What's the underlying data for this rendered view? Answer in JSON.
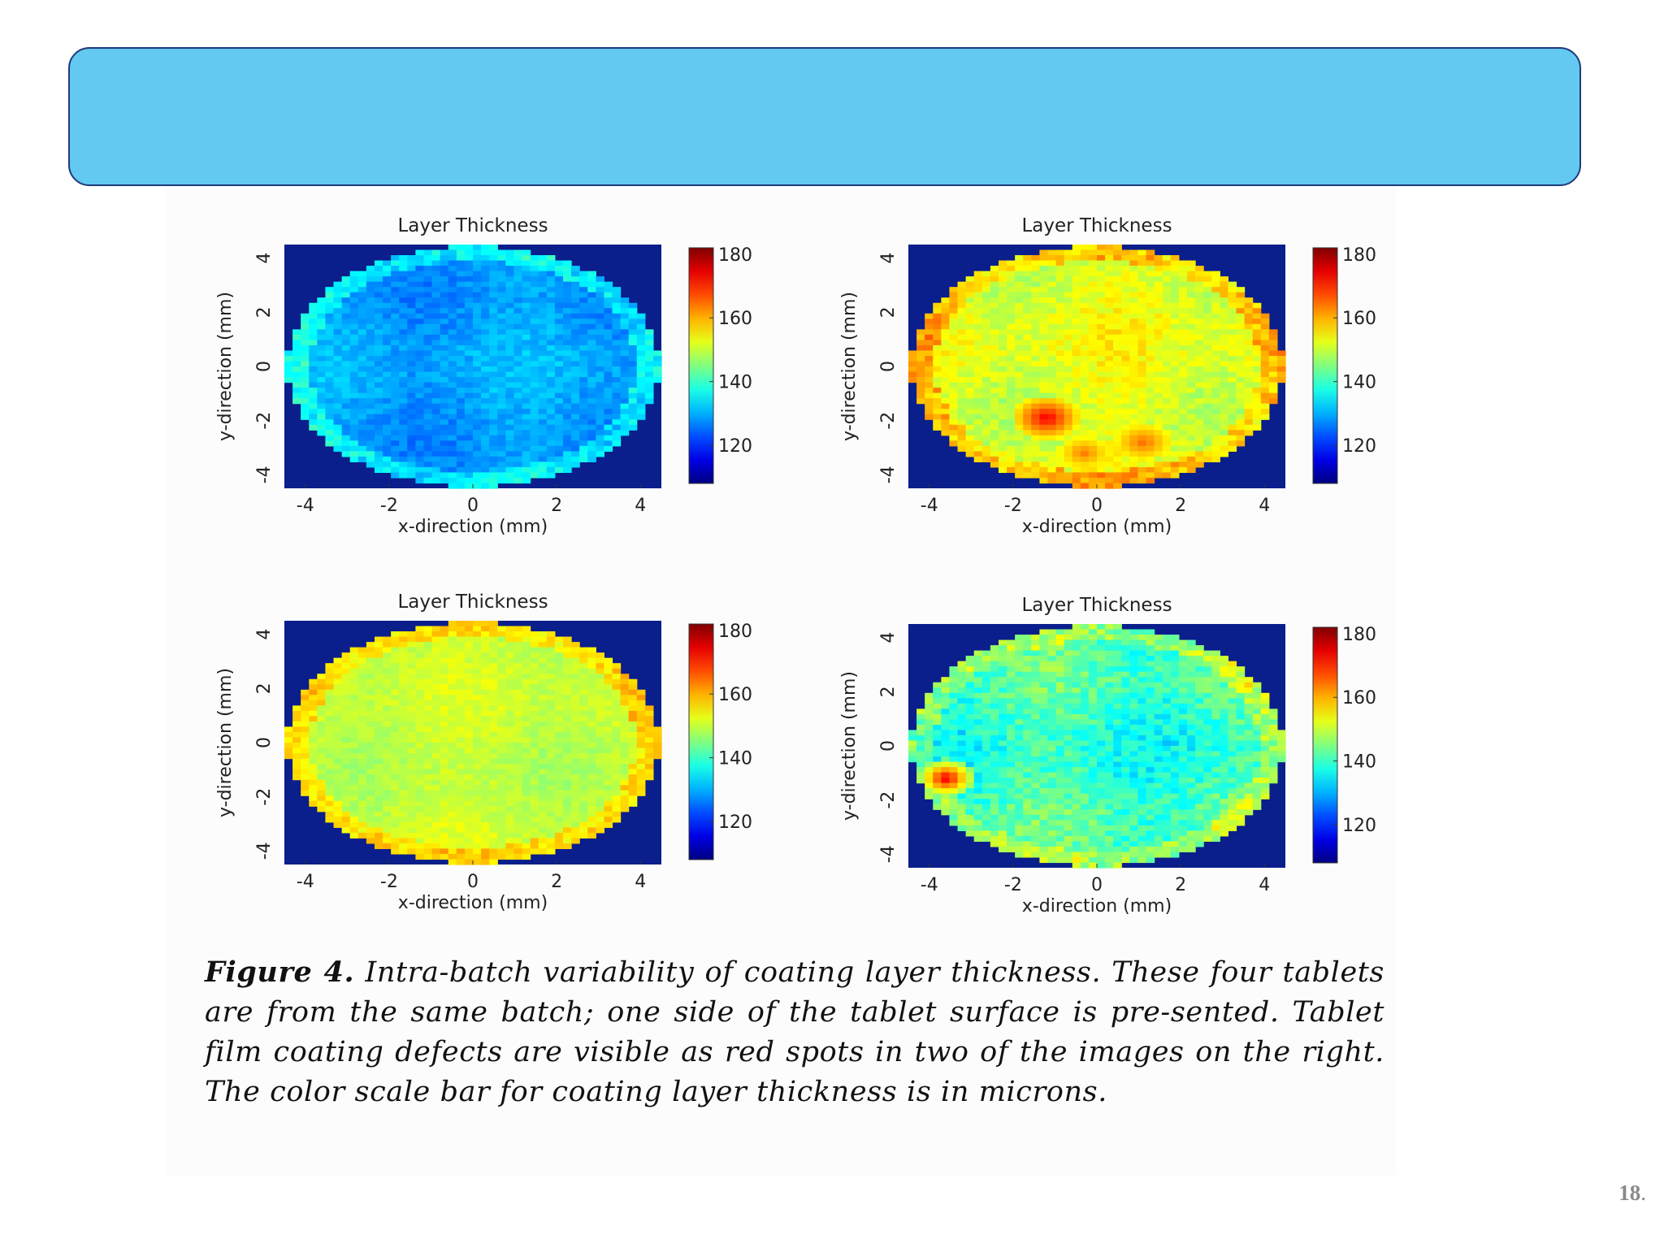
{
  "slide": {
    "banner_title": "",
    "slide_number": "18",
    "slide_number_suffix": "."
  },
  "caption": {
    "lead": "Figure 4.",
    "text": " Intra-batch variability of coating layer thickness. These four tablets are from the same batch; one side of the tablet surface is pre-sented. Tablet film coating defects are visible as red spots in two of the images on the right. The color scale bar for coating layer thickness is in microns."
  },
  "colors": {
    "banner": "#63c9f1",
    "banner_border": "#1f3a7a",
    "background_outside_tablet": "#0a1e8c"
  },
  "chart_data": [
    {
      "type": "heatmap",
      "title": "Layer Thickness",
      "xlabel": "x-direction (mm)",
      "ylabel": "y-direction (mm)",
      "xlim": [
        -4.5,
        4.5
      ],
      "ylim": [
        -4.5,
        4.5
      ],
      "xticks": [
        -4,
        -2,
        0,
        2,
        4
      ],
      "yticks": [
        4,
        2,
        0,
        -2,
        -4
      ],
      "colorbar": {
        "ticks": [
          180,
          160,
          140,
          120
        ],
        "range": [
          108,
          182
        ],
        "colormap": "jet"
      },
      "mean_thickness": 129,
      "variation": 2.5,
      "defects": []
    },
    {
      "type": "heatmap",
      "title": "Layer Thickness",
      "xlabel": "x-direction (mm)",
      "ylabel": "y-direction (mm)",
      "xlim": [
        -4.5,
        4.5
      ],
      "ylim": [
        -4.5,
        4.5
      ],
      "xticks": [
        -4,
        -2,
        0,
        2,
        4
      ],
      "yticks": [
        4,
        2,
        0,
        -2,
        -4
      ],
      "colorbar": {
        "ticks": [
          180,
          160,
          140,
          120
        ],
        "range": [
          108,
          182
        ],
        "colormap": "jet"
      },
      "mean_thickness": 152,
      "variation": 3,
      "defects": [
        {
          "x": -1.2,
          "y": -1.9,
          "r": 0.45,
          "value": 174
        },
        {
          "x": 1.1,
          "y": -2.8,
          "r": 0.4,
          "value": 165
        },
        {
          "x": -0.3,
          "y": -3.2,
          "r": 0.35,
          "value": 164
        }
      ]
    },
    {
      "type": "heatmap",
      "title": "Layer Thickness",
      "xlabel": "x-direction (mm)",
      "ylabel": "y-direction (mm)",
      "xlim": [
        -4.5,
        4.5
      ],
      "ylim": [
        -4.5,
        4.5
      ],
      "xticks": [
        -4,
        -2,
        0,
        2,
        4
      ],
      "yticks": [
        4,
        2,
        0,
        -2,
        -4
      ],
      "colorbar": {
        "ticks": [
          180,
          160,
          140,
          120
        ],
        "range": [
          108,
          182
        ],
        "colormap": "jet"
      },
      "mean_thickness": 150,
      "variation": 2,
      "defects": []
    },
    {
      "type": "heatmap",
      "title": "Layer Thickness",
      "xlabel": "x-direction (mm)",
      "ylabel": "y-direction (mm)",
      "xlim": [
        -4.5,
        4.5
      ],
      "ylim": [
        -4.5,
        4.5
      ],
      "xticks": [
        -4,
        -2,
        0,
        2,
        4
      ],
      "yticks": [
        4,
        2,
        0,
        -2,
        -4
      ],
      "colorbar": {
        "ticks": [
          180,
          160,
          140,
          120
        ],
        "range": [
          108,
          182
        ],
        "colormap": "jet"
      },
      "mean_thickness": 140,
      "variation": 4.5,
      "defects": [
        {
          "x": -3.6,
          "y": -1.2,
          "r": 0.4,
          "value": 175
        }
      ]
    }
  ]
}
